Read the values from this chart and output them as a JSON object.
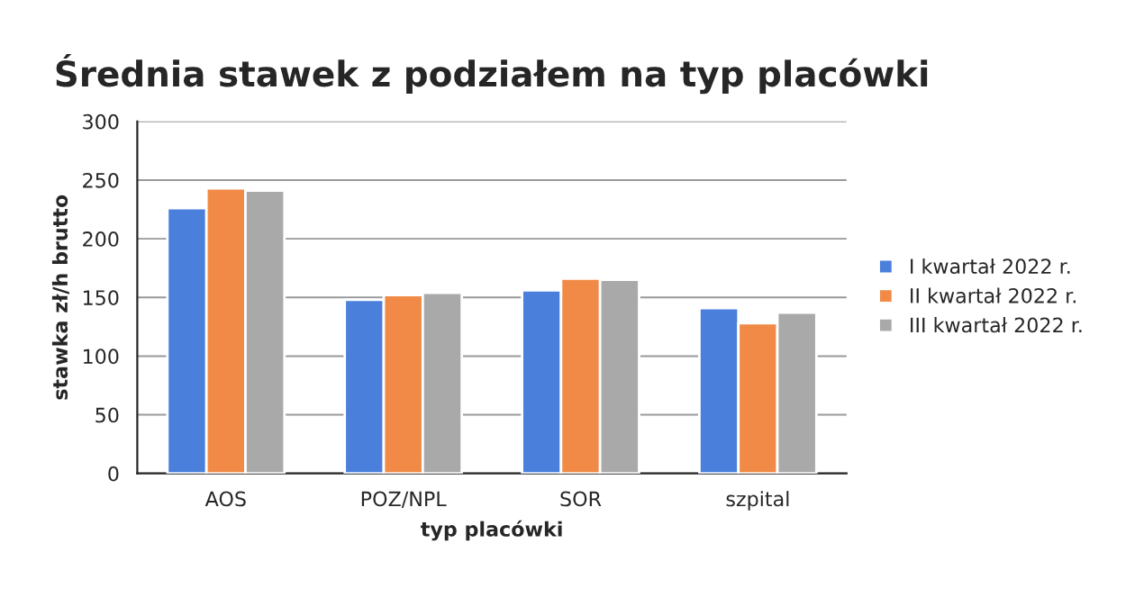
{
  "chart_data": {
    "type": "bar",
    "title": "Średnia stawek z podziałem na typ placówki",
    "xlabel": "typ placówki",
    "ylabel": "stawka zł/h brutto",
    "categories": [
      "AOS",
      "POZ/NPL",
      "SOR",
      "szpital"
    ],
    "series": [
      {
        "name": "I kwartał 2022 r.",
        "color": "#4a7fdc",
        "values": [
          226,
          148,
          156,
          141
        ]
      },
      {
        "name": "II kwartał 2022 r.",
        "color": "#f08a46",
        "values": [
          243,
          152,
          166,
          128
        ]
      },
      {
        "name": "III kwartał 2022 r.",
        "color": "#a9a9a9",
        "values": [
          241,
          154,
          165,
          137
        ]
      }
    ],
    "ylim": [
      0,
      300
    ],
    "yticks": [
      0,
      50,
      100,
      150,
      200,
      250,
      300
    ],
    "grid": "y",
    "legend": "right"
  }
}
